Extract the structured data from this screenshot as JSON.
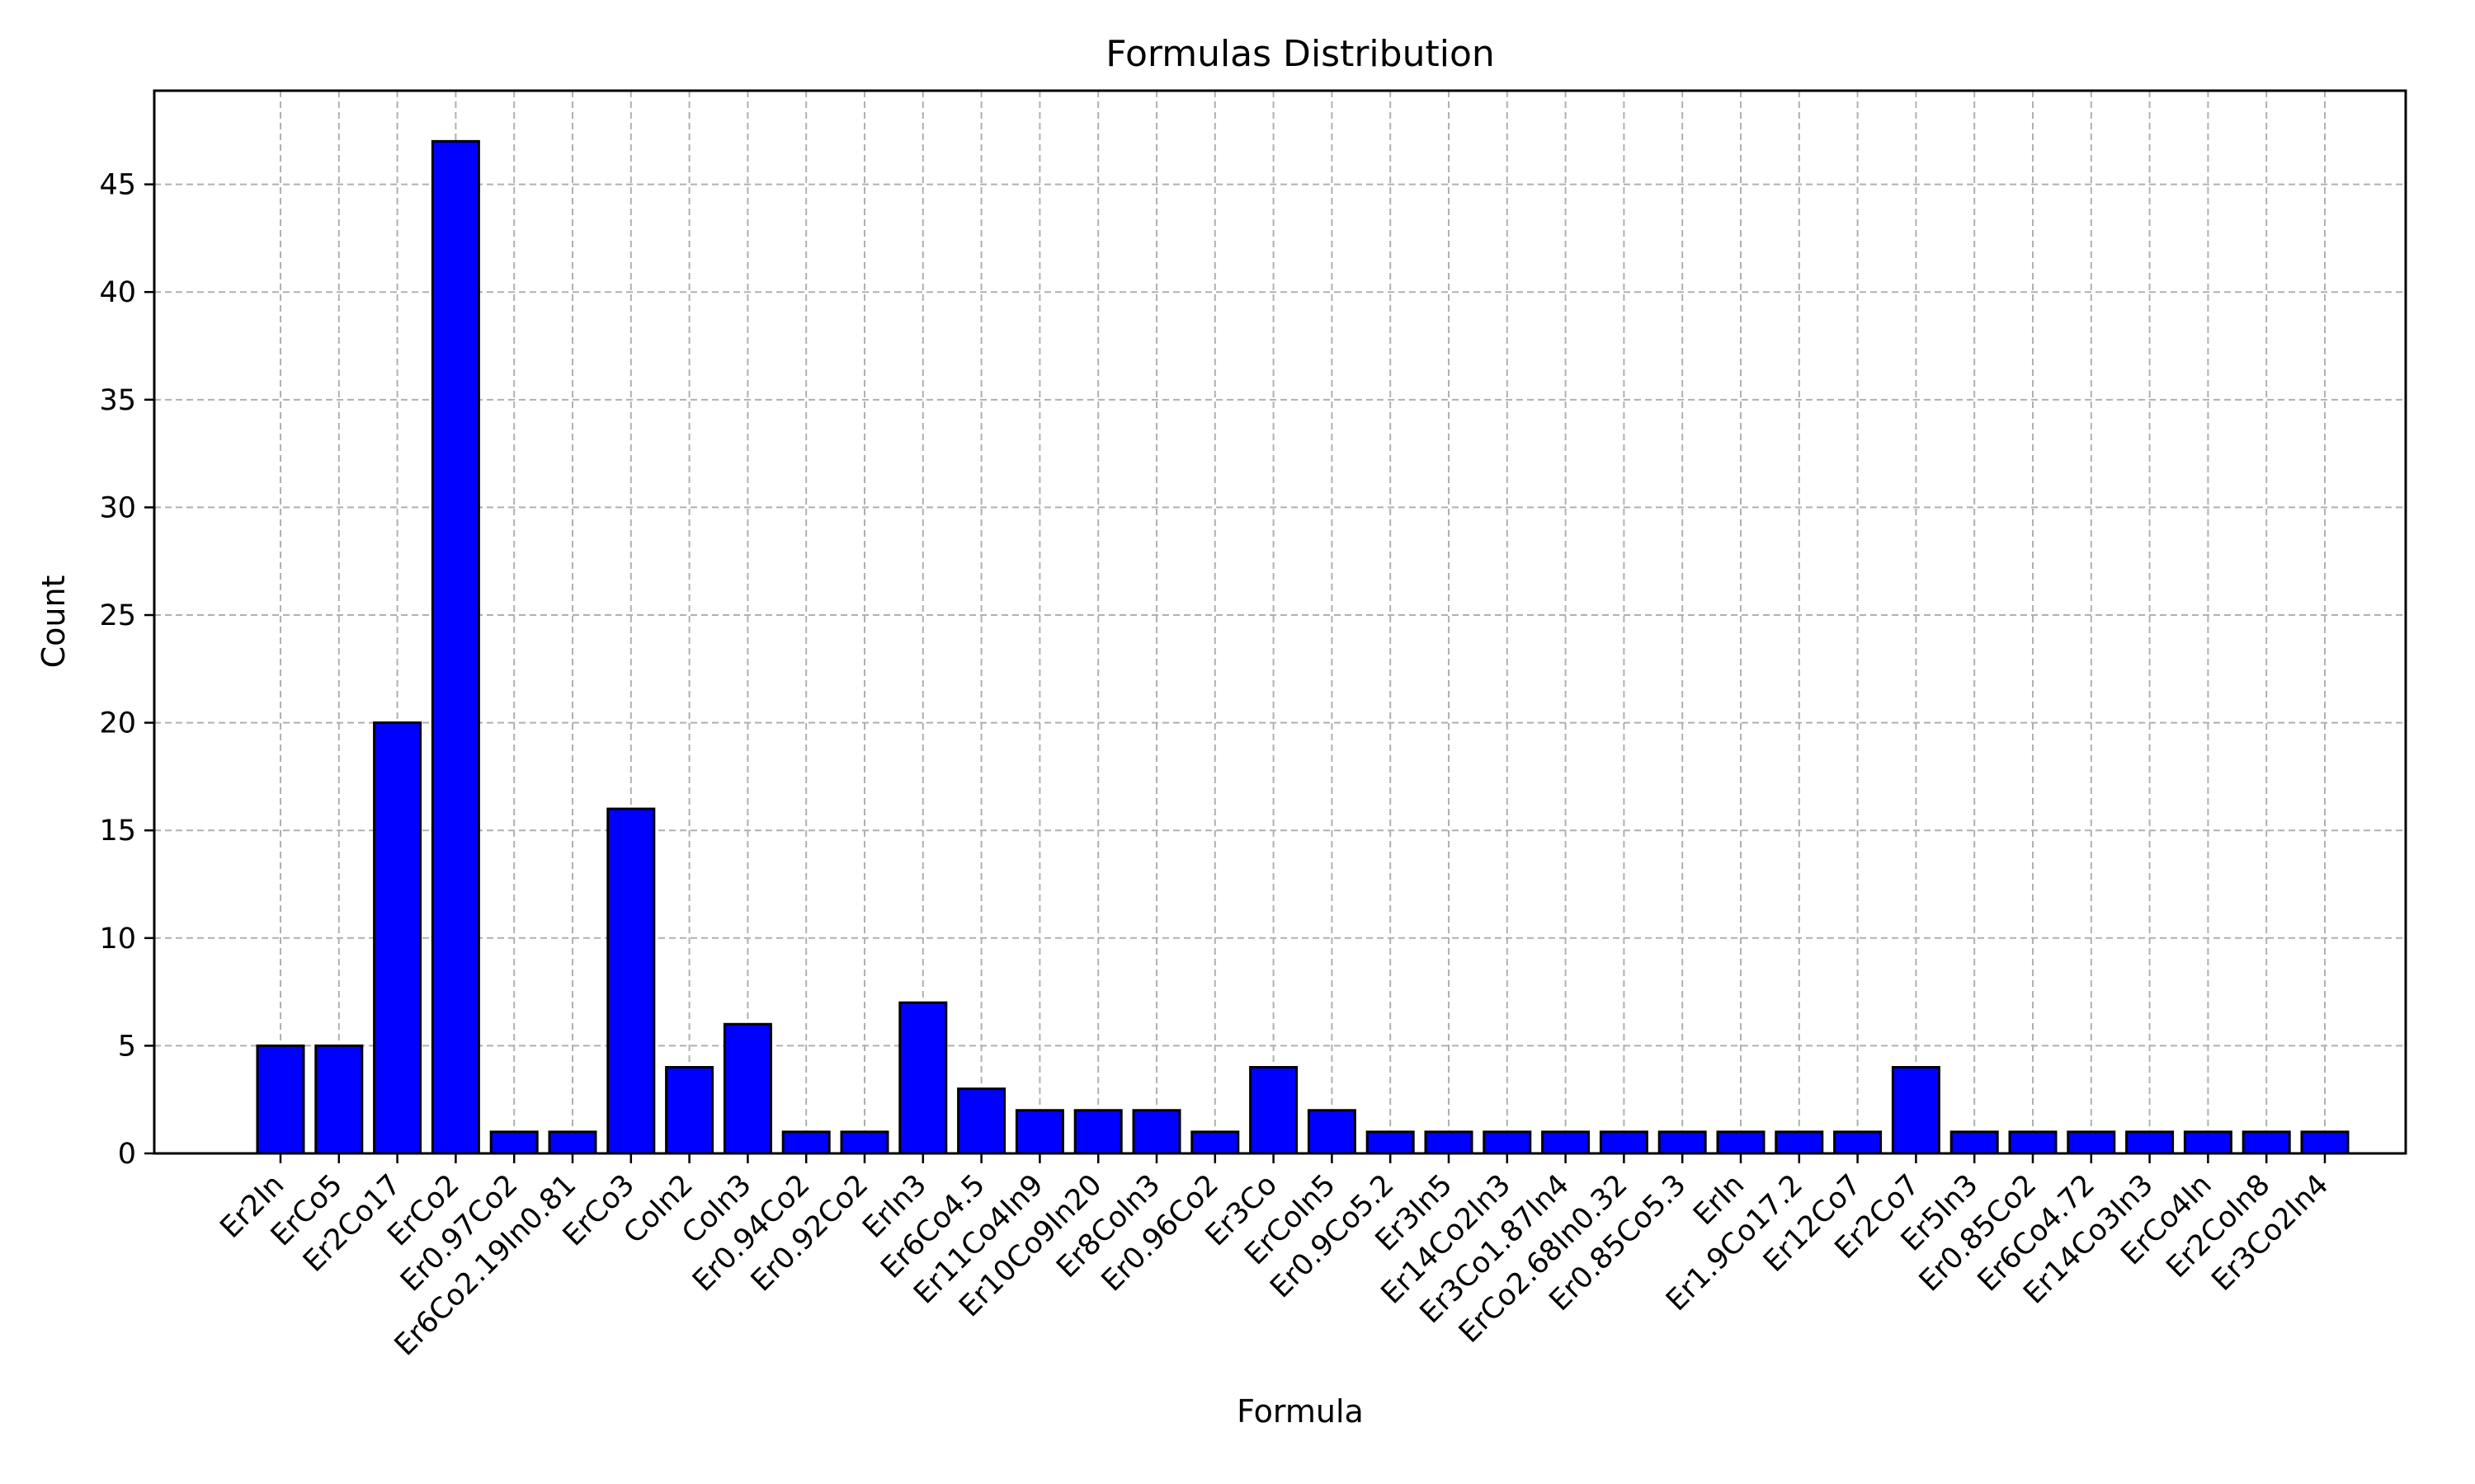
{
  "chart_data": {
    "type": "bar",
    "title": "Formulas Distribution",
    "xlabel": "Formula",
    "ylabel": "Count",
    "categories": [
      "Er2In",
      "ErCo5",
      "Er2Co17",
      "ErCo2",
      "Er0.97Co2",
      "Er6Co2.19In0.81",
      "ErCo3",
      "CoIn2",
      "CoIn3",
      "Er0.94Co2",
      "Er0.92Co2",
      "ErIn3",
      "Er6Co4.5",
      "Er11Co4In9",
      "Er10Co9In20",
      "Er8CoIn3",
      "Er0.96Co2",
      "Er3Co",
      "ErCoIn5",
      "Er0.9Co5.2",
      "Er3In5",
      "Er14Co2In3",
      "Er3Co1.87In4",
      "ErCo2.68In0.32",
      "Er0.85Co5.3",
      "ErIn",
      "Er1.9Co17.2",
      "Er12Co7",
      "Er2Co7",
      "Er5In3",
      "Er0.85Co2",
      "Er6Co4.72",
      "Er14Co3In3",
      "ErCo4In",
      "Er2CoIn8",
      "Er3Co2In4"
    ],
    "values": [
      5,
      5,
      20,
      47,
      1,
      1,
      16,
      4,
      6,
      1,
      1,
      7,
      3,
      2,
      2,
      2,
      1,
      4,
      2,
      1,
      1,
      1,
      1,
      1,
      1,
      1,
      1,
      1,
      4,
      1,
      1,
      1,
      1,
      1,
      1,
      1
    ],
    "yticks": [
      0,
      5,
      10,
      15,
      20,
      25,
      30,
      35,
      40,
      45
    ],
    "ylim": [
      0,
      49.35
    ],
    "grid": true,
    "colors": {
      "bar": "#0000ff",
      "edge": "#000000",
      "grid": "#b0b0b0"
    }
  }
}
